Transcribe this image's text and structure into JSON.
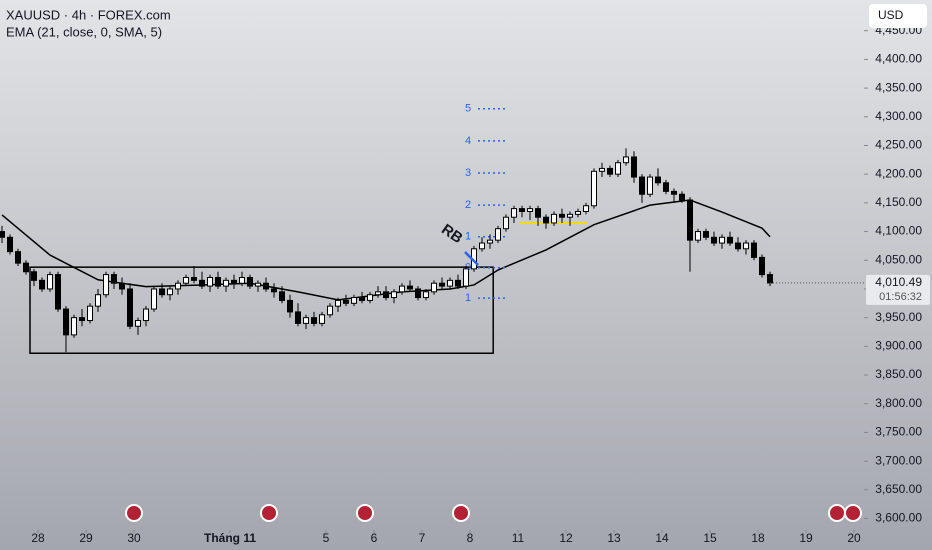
{
  "chart_data": {
    "type": "candlestick",
    "title": "XAUUSD · 4h · FOREX.com",
    "indicator": "EMA (21, close, 0, SMA, 5)",
    "currency": "USD",
    "xlim": [
      -0.25,
      107.75
    ],
    "ylim": [
      3580,
      4500
    ],
    "yticks": [
      {
        "value": 3600,
        "label": "3,600.00"
      },
      {
        "value": 3650,
        "label": "3,650.00"
      },
      {
        "value": 3700,
        "label": "3,700.00"
      },
      {
        "value": 3750,
        "label": "3,750.00"
      },
      {
        "value": 3800,
        "label": "3,800.00"
      },
      {
        "value": 3850,
        "label": "3,850.00"
      },
      {
        "value": 3900,
        "label": "3,900.00"
      },
      {
        "value": 3950,
        "label": "3,950.00"
      },
      {
        "value": 4000,
        "label": "4,000.00"
      },
      {
        "value": 4050,
        "label": "4,050.00"
      },
      {
        "value": 4100,
        "label": "4,100.00"
      },
      {
        "value": 4150,
        "label": "4,150.00"
      },
      {
        "value": 4200,
        "label": "4,200.00"
      },
      {
        "value": 4250,
        "label": "4,250.00"
      },
      {
        "value": 4300,
        "label": "4,300.00"
      },
      {
        "value": 4350,
        "label": "4,350.00"
      },
      {
        "value": 4400,
        "label": "4,400.00"
      },
      {
        "value": 4450,
        "label": "4,450.00"
      }
    ],
    "xticks": [
      {
        "value": 4.5,
        "label": "28"
      },
      {
        "value": 10.5,
        "label": "29"
      },
      {
        "value": 16.5,
        "label": "30"
      },
      {
        "value": 28.5,
        "label": "Tháng 11"
      },
      {
        "value": 40.5,
        "label": "5"
      },
      {
        "value": 46.5,
        "label": "6"
      },
      {
        "value": 52.5,
        "label": "7"
      },
      {
        "value": 58.5,
        "label": "8"
      },
      {
        "value": 64.5,
        "label": "11"
      },
      {
        "value": 70.5,
        "label": "12"
      },
      {
        "value": 76.5,
        "label": "13"
      },
      {
        "value": 82.5,
        "label": "14"
      },
      {
        "value": 88.5,
        "label": "15"
      },
      {
        "value": 94.5,
        "label": "18"
      },
      {
        "value": 100.5,
        "label": "19"
      },
      {
        "value": 106.5,
        "label": "20"
      }
    ],
    "up_color": "#ffffff",
    "down_color": "#000000",
    "ema_color": "#000000",
    "x": [
      0,
      1,
      2,
      3,
      4,
      5,
      6,
      7,
      8,
      9,
      10,
      11,
      12,
      13,
      14,
      15,
      16,
      17,
      18,
      19,
      20,
      21,
      22,
      23,
      24,
      25,
      26,
      27,
      28,
      29,
      30,
      31,
      32,
      33,
      34,
      35,
      36,
      37,
      38,
      39,
      40,
      41,
      42,
      43,
      44,
      45,
      46,
      47,
      48,
      49,
      50,
      51,
      52,
      53,
      54,
      55,
      56,
      57,
      58,
      59,
      60,
      61,
      62,
      63,
      64,
      65,
      66,
      67,
      68,
      69,
      70,
      71,
      72,
      73,
      74,
      75,
      76,
      77,
      78,
      79,
      80,
      81,
      82,
      83,
      84,
      85,
      86,
      87,
      88,
      89,
      90,
      91,
      92,
      93,
      94,
      95,
      96
    ],
    "open": [
      4100,
      4090,
      4065,
      4045,
      4030,
      4015,
      4000,
      4025,
      3965,
      3920,
      3950,
      3945,
      3970,
      3990,
      4025,
      4010,
      4000,
      3935,
      3945,
      3965,
      4000,
      3990,
      4000,
      4010,
      4020,
      4015,
      4005,
      4020,
      4005,
      4015,
      4010,
      4020,
      4005,
      4010,
      4000,
      3995,
      3980,
      3960,
      3940,
      3950,
      3940,
      3955,
      3970,
      3980,
      3975,
      3985,
      3980,
      3990,
      3995,
      3985,
      3995,
      4005,
      4000,
      3985,
      3995,
      4010,
      4005,
      4015,
      4005,
      4035,
      4070,
      4080,
      4085,
      4105,
      4125,
      4140,
      4135,
      4140,
      4125,
      4115,
      4130,
      4125,
      4130,
      4135,
      4145,
      4205,
      4210,
      4200,
      4220,
      4230,
      4195,
      4165,
      4195,
      4185,
      4170,
      4165,
      4155,
      4085,
      4100,
      4090,
      4080,
      4090,
      4080,
      4070,
      4080,
      4055,
      4025
    ],
    "high": [
      4110,
      4095,
      4070,
      4050,
      4035,
      4020,
      4030,
      4030,
      3970,
      3955,
      3965,
      3975,
      4000,
      4030,
      4030,
      4020,
      4010,
      3950,
      3970,
      4005,
      4010,
      4005,
      4015,
      4025,
      4040,
      4030,
      4025,
      4030,
      4020,
      4025,
      4030,
      4025,
      4015,
      4020,
      4010,
      4005,
      3990,
      3975,
      3955,
      3960,
      3960,
      3975,
      3985,
      3990,
      3990,
      3995,
      3995,
      4005,
      4005,
      4000,
      4010,
      4015,
      4005,
      4000,
      4015,
      4020,
      4020,
      4025,
      4040,
      4075,
      4090,
      4095,
      4110,
      4130,
      4145,
      4145,
      4145,
      4145,
      4130,
      4135,
      4140,
      4135,
      4140,
      4150,
      4210,
      4220,
      4215,
      4225,
      4245,
      4240,
      4200,
      4200,
      4210,
      4190,
      4175,
      4170,
      4160,
      4105,
      4105,
      4100,
      4095,
      4100,
      4090,
      4085,
      4085,
      4060,
      4030
    ],
    "low": [
      4080,
      4060,
      4040,
      4025,
      4005,
      3995,
      3995,
      3960,
      3890,
      3915,
      3935,
      3940,
      3960,
      3985,
      4000,
      3990,
      3930,
      3920,
      3935,
      3960,
      3985,
      3980,
      3990,
      4005,
      4010,
      4000,
      3995,
      4000,
      3995,
      4000,
      4005,
      4000,
      3995,
      3995,
      3985,
      3975,
      3950,
      3935,
      3930,
      3935,
      3935,
      3950,
      3960,
      3970,
      3970,
      3975,
      3975,
      3985,
      3980,
      3975,
      3990,
      3995,
      3980,
      3980,
      3990,
      4000,
      4000,
      4000,
      4000,
      4030,
      4065,
      4070,
      4080,
      4100,
      4115,
      4125,
      4120,
      4110,
      4105,
      4110,
      4115,
      4110,
      4125,
      4130,
      4140,
      4195,
      4195,
      4195,
      4215,
      4185,
      4150,
      4160,
      4180,
      4165,
      4150,
      4150,
      4030,
      4080,
      4085,
      4075,
      4070,
      4075,
      4065,
      4060,
      4050,
      4020,
      4005
    ],
    "close": [
      4090,
      4065,
      4045,
      4030,
      4015,
      4000,
      4025,
      3965,
      3920,
      3950,
      3945,
      3970,
      3990,
      4025,
      4010,
      4000,
      3935,
      3945,
      3965,
      4000,
      3990,
      4000,
      4010,
      4020,
      4015,
      4005,
      4020,
      4005,
      4015,
      4010,
      4020,
      4005,
      4010,
      4000,
      3995,
      3980,
      3960,
      3940,
      3950,
      3940,
      3955,
      3970,
      3980,
      3975,
      3985,
      3980,
      3990,
      3995,
      3985,
      3995,
      4005,
      4000,
      3985,
      3995,
      4010,
      4005,
      4015,
      4005,
      4035,
      4070,
      4080,
      4085,
      4105,
      4125,
      4140,
      4135,
      4140,
      4125,
      4115,
      4130,
      4125,
      4130,
      4135,
      4145,
      4205,
      4210,
      4200,
      4220,
      4230,
      4195,
      4165,
      4195,
      4185,
      4170,
      4165,
      4155,
      4085,
      4100,
      4090,
      4080,
      4090,
      4080,
      4070,
      4080,
      4055,
      4025,
      4010.49
    ],
    "ema": {
      "x": [
        0,
        6,
        12,
        18,
        25,
        31,
        37,
        42,
        50,
        56,
        59,
        62,
        68,
        74,
        81,
        86,
        90,
        95,
        96
      ],
      "values": [
        4129,
        4059,
        4016,
        4004,
        4007,
        4010,
        3995,
        3981,
        3995,
        4000,
        4007,
        4033,
        4068,
        4112,
        4146,
        4155,
        4134,
        4106,
        4091
      ]
    },
    "last_price": {
      "value": 4010.49,
      "label": "4,010.49",
      "countdown": "01:56:32"
    },
    "range_box": {
      "x": [
        3.5,
        61.4
      ],
      "y": [
        3888,
        4038
      ]
    },
    "support_line": {
      "value": 4115,
      "x": [
        64.75,
        73.25
      ],
      "color": "#f5d90a"
    },
    "annotation": {
      "text": "RB",
      "x": 56.2,
      "y": 4095
    },
    "levels": {
      "x": [
        59.5,
        63.1
      ],
      "color": "#2962ff",
      "items": [
        {
          "label": "5",
          "value": 4314
        },
        {
          "label": "4",
          "value": 4258
        },
        {
          "label": "3",
          "value": 4202
        },
        {
          "label": "2",
          "value": 4146
        },
        {
          "label": "1",
          "value": 4091
        },
        {
          "label": "0",
          "value": 4037
        },
        {
          "label": "1",
          "value": 3984
        }
      ]
    }
  }
}
